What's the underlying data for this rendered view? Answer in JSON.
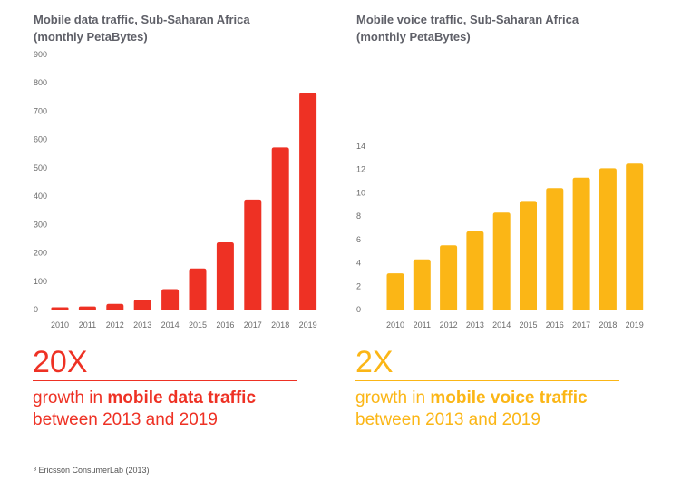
{
  "colors": {
    "data": "#ee3124",
    "voice": "#fbb616",
    "title": "#5f6068",
    "tick": "#6b6b6b"
  },
  "left": {
    "title_line1": "Mobile data traffic, Sub-Saharan Africa",
    "title_line2": "(monthly PetaBytes)",
    "big": "20X",
    "caption_pre": "growth in ",
    "caption_bold": "mobile data traffic",
    "caption_line2": "between 2013 and 2019"
  },
  "right": {
    "title_line1": "Mobile voice traffic, Sub-Saharan Africa",
    "title_line2": "(monthly PetaBytes)",
    "big": "2X",
    "caption_pre": "growth in ",
    "caption_bold": "mobile voice traffic",
    "caption_line2": "between 2013 and 2019"
  },
  "footnote": "³ Ericsson ConsumerLab (2013)",
  "chart_data": [
    {
      "type": "bar",
      "title": "Mobile data traffic, Sub-Saharan Africa (monthly PetaBytes)",
      "xlabel": "",
      "ylabel": "",
      "categories": [
        "2010",
        "2011",
        "2012",
        "2013",
        "2014",
        "2015",
        "2016",
        "2017",
        "2018",
        "2019"
      ],
      "values": [
        8,
        11,
        20,
        35,
        72,
        145,
        237,
        388,
        572,
        765
      ],
      "ylim": [
        0,
        900
      ],
      "yticks": [
        0,
        100,
        200,
        300,
        400,
        500,
        600,
        700,
        800,
        900
      ],
      "grid": false,
      "color": "#ee3124"
    },
    {
      "type": "bar",
      "title": "Mobile voice traffic, Sub-Saharan Africa (monthly PetaBytes)",
      "xlabel": "",
      "ylabel": "",
      "categories": [
        "2010",
        "2011",
        "2012",
        "2013",
        "2014",
        "2015",
        "2016",
        "2017",
        "2018",
        "2019"
      ],
      "values": [
        3.1,
        4.3,
        5.5,
        6.7,
        8.3,
        9.3,
        10.4,
        11.3,
        12.1,
        12.5
      ],
      "ylim": [
        0,
        14
      ],
      "yticks": [
        0,
        2,
        4,
        6,
        8,
        10,
        12,
        14
      ],
      "grid": false,
      "color": "#fbb616"
    }
  ]
}
